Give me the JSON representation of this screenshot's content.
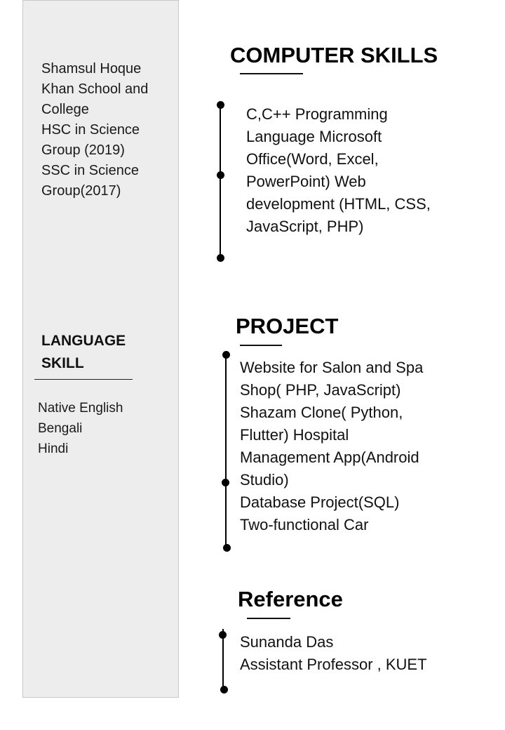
{
  "education": {
    "lines": [
      "Shamsul Hoque",
      "Khan School and",
      "College",
      "HSC in Science",
      "Group (2019)",
      "SSC in Science",
      "Group(2017)"
    ]
  },
  "language": {
    "heading_line1": "LANGUAGE",
    "heading_line2": "SKILL",
    "items": [
      "Native English",
      "Bengali",
      "Hindi"
    ]
  },
  "computer_skills": {
    "title": "COMPUTER SKILLS",
    "lines": [
      "C,C++ Programming",
      "Language Microsoft",
      "Office(Word, Excel,",
      "PowerPoint) Web",
      "development (HTML, CSS,",
      "JavaScript, PHP)"
    ]
  },
  "project": {
    "title": "PROJECT",
    "lines": [
      "Website for Salon and Spa",
      "Shop( PHP,  JavaScript)",
      "Shazam Clone( Python,",
      "Flutter) Hospital",
      "Management App(Android",
      "Studio)",
      "Database Project(SQL)",
      "Two-functional Car"
    ]
  },
  "reference": {
    "title": "Reference",
    "lines": [
      "Sunanda Das",
      "Assistant Professor , KUET"
    ]
  }
}
